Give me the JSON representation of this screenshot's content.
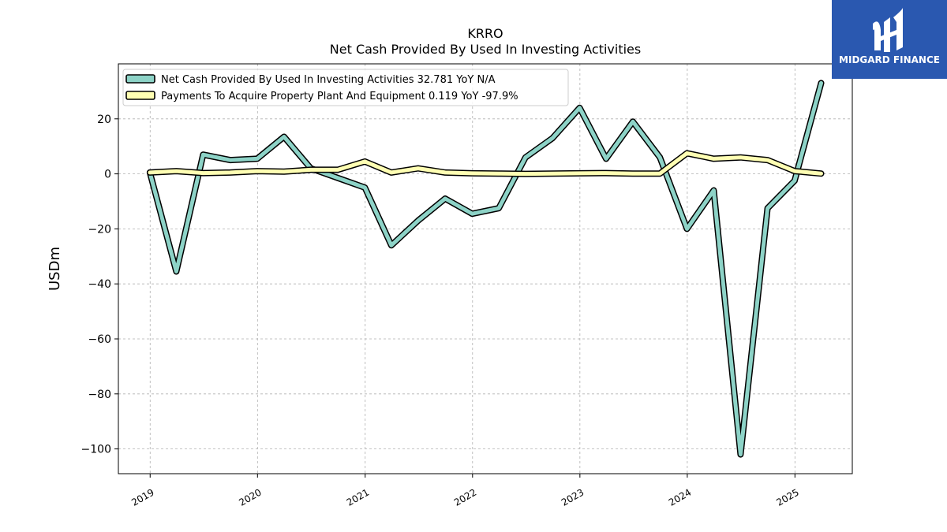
{
  "brand": {
    "name": "MIDGARD FINANCE",
    "background": "#2a58b0"
  },
  "chart_data": {
    "type": "line",
    "title": "KRRO",
    "subtitle": "Net Cash Provided By Used In Investing Activities",
    "xlabel": "",
    "ylabel": "USDm",
    "xlim": [
      "2018-09-15",
      "2025-07-15"
    ],
    "ylim": [
      -109,
      40
    ],
    "yticks": [
      20,
      0,
      -20,
      -40,
      -60,
      -80,
      -100
    ],
    "ytick_labels": [
      "20",
      "0",
      "−20",
      "−40",
      "−60",
      "−80",
      "−100"
    ],
    "xticks": [
      "2019-01-01",
      "2020-01-01",
      "2021-01-01",
      "2022-01-01",
      "2023-01-01",
      "2024-01-01",
      "2025-01-01"
    ],
    "xtick_labels": [
      "2019",
      "2020",
      "2021",
      "2022",
      "2023",
      "2024",
      "2025"
    ],
    "grid": true,
    "legend_position": "top-left",
    "series": [
      {
        "name": "Net Cash Provided By Used In Investing Activities",
        "legend_label": "Net Cash Provided By Used In Investing Activities  32.781 YoY N/A",
        "color": "#8dd3c7",
        "x": [
          "2018-12-31",
          "2019-03-31",
          "2019-06-30",
          "2019-09-30",
          "2019-12-31",
          "2020-03-31",
          "2020-06-30",
          "2020-09-30",
          "2020-12-31",
          "2021-03-31",
          "2021-06-30",
          "2021-09-30",
          "2021-12-31",
          "2022-03-31",
          "2022-06-30",
          "2022-09-30",
          "2022-12-31",
          "2023-03-31",
          "2023-06-30",
          "2023-09-30",
          "2023-12-31",
          "2024-03-31",
          "2024-06-30",
          "2024-09-30",
          "2024-12-31",
          "2025-03-31"
        ],
        "values": [
          0.5,
          -35.5,
          7.0,
          5.0,
          5.5,
          13.5,
          2.0,
          -1.5,
          -5.0,
          -26.0,
          -17.0,
          -9.0,
          -14.5,
          -12.5,
          6.0,
          13.0,
          24.0,
          5.5,
          19.0,
          6.0,
          -20.0,
          -6.0,
          -102.0,
          -12.5,
          -2.5,
          33.0
        ]
      },
      {
        "name": "Payments To Acquire Property Plant And Equipment",
        "legend_label": "Payments To Acquire Property Plant And Equipment  0.119 YoY -97.9%",
        "color": "#ffffb3",
        "x": [
          "2018-12-31",
          "2019-03-31",
          "2019-06-30",
          "2019-09-30",
          "2019-12-31",
          "2020-03-31",
          "2020-06-30",
          "2020-09-30",
          "2020-12-31",
          "2021-03-31",
          "2021-06-30",
          "2021-09-30",
          "2021-12-31",
          "2022-03-31",
          "2022-06-30",
          "2022-09-30",
          "2022-12-31",
          "2023-03-31",
          "2023-06-30",
          "2023-09-30",
          "2023-12-31",
          "2024-03-31",
          "2024-06-30",
          "2024-09-30",
          "2024-12-31",
          "2025-03-31"
        ],
        "values": [
          0.5,
          1.0,
          0.3,
          0.5,
          1.0,
          0.8,
          1.5,
          1.5,
          4.5,
          0.5,
          2.0,
          0.5,
          0.2,
          0.1,
          0.0,
          0.1,
          0.2,
          0.3,
          0.1,
          0.1,
          7.5,
          5.5,
          6.0,
          5.0,
          1.0,
          0.1
        ]
      }
    ]
  }
}
